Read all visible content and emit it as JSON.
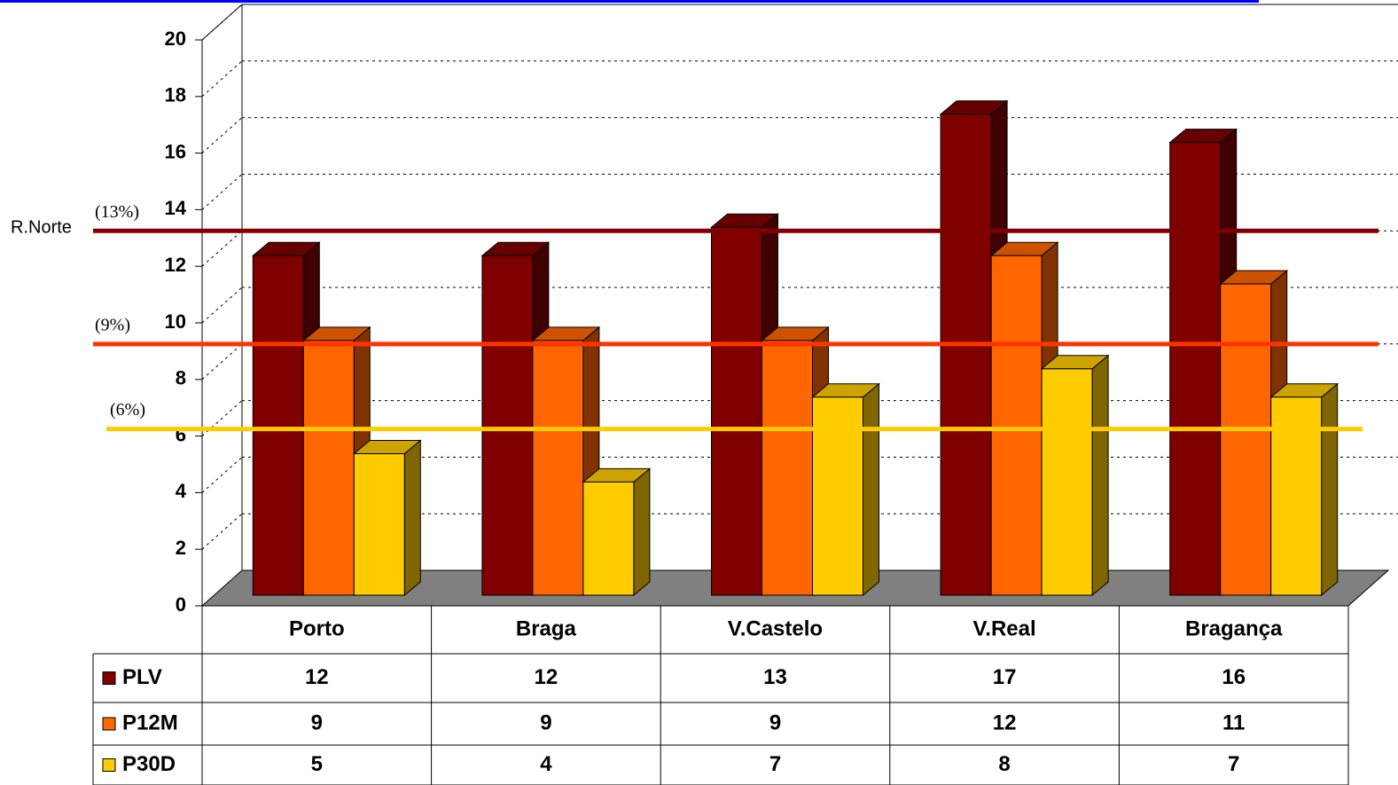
{
  "chart_data": {
    "type": "bar3d",
    "categories": [
      "Porto",
      "Braga",
      "V.Castelo",
      "V.Real",
      "Bragança"
    ],
    "series": [
      {
        "name": "PLV",
        "color": "#800000",
        "values": [
          12,
          12,
          13,
          17,
          16
        ]
      },
      {
        "name": "P12M",
        "color": "#ff6600",
        "values": [
          9,
          9,
          9,
          12,
          11
        ]
      },
      {
        "name": "P30D",
        "color": "#ffcc00",
        "values": [
          5,
          4,
          7,
          8,
          7
        ]
      }
    ],
    "ylim": [
      0,
      20
    ],
    "yticks": [
      0,
      2,
      4,
      6,
      8,
      10,
      12,
      14,
      16,
      18,
      20
    ],
    "grid": true,
    "reference_annotation": "R.Norte",
    "reference_lines": [
      {
        "label": "(13%)",
        "value": 13,
        "color": "#800000"
      },
      {
        "label": "(9%)",
        "value": 9,
        "color": "#ff3300"
      },
      {
        "label": "(6%)",
        "value": 6,
        "color": "#ffcc00"
      }
    ],
    "data_table": true
  }
}
